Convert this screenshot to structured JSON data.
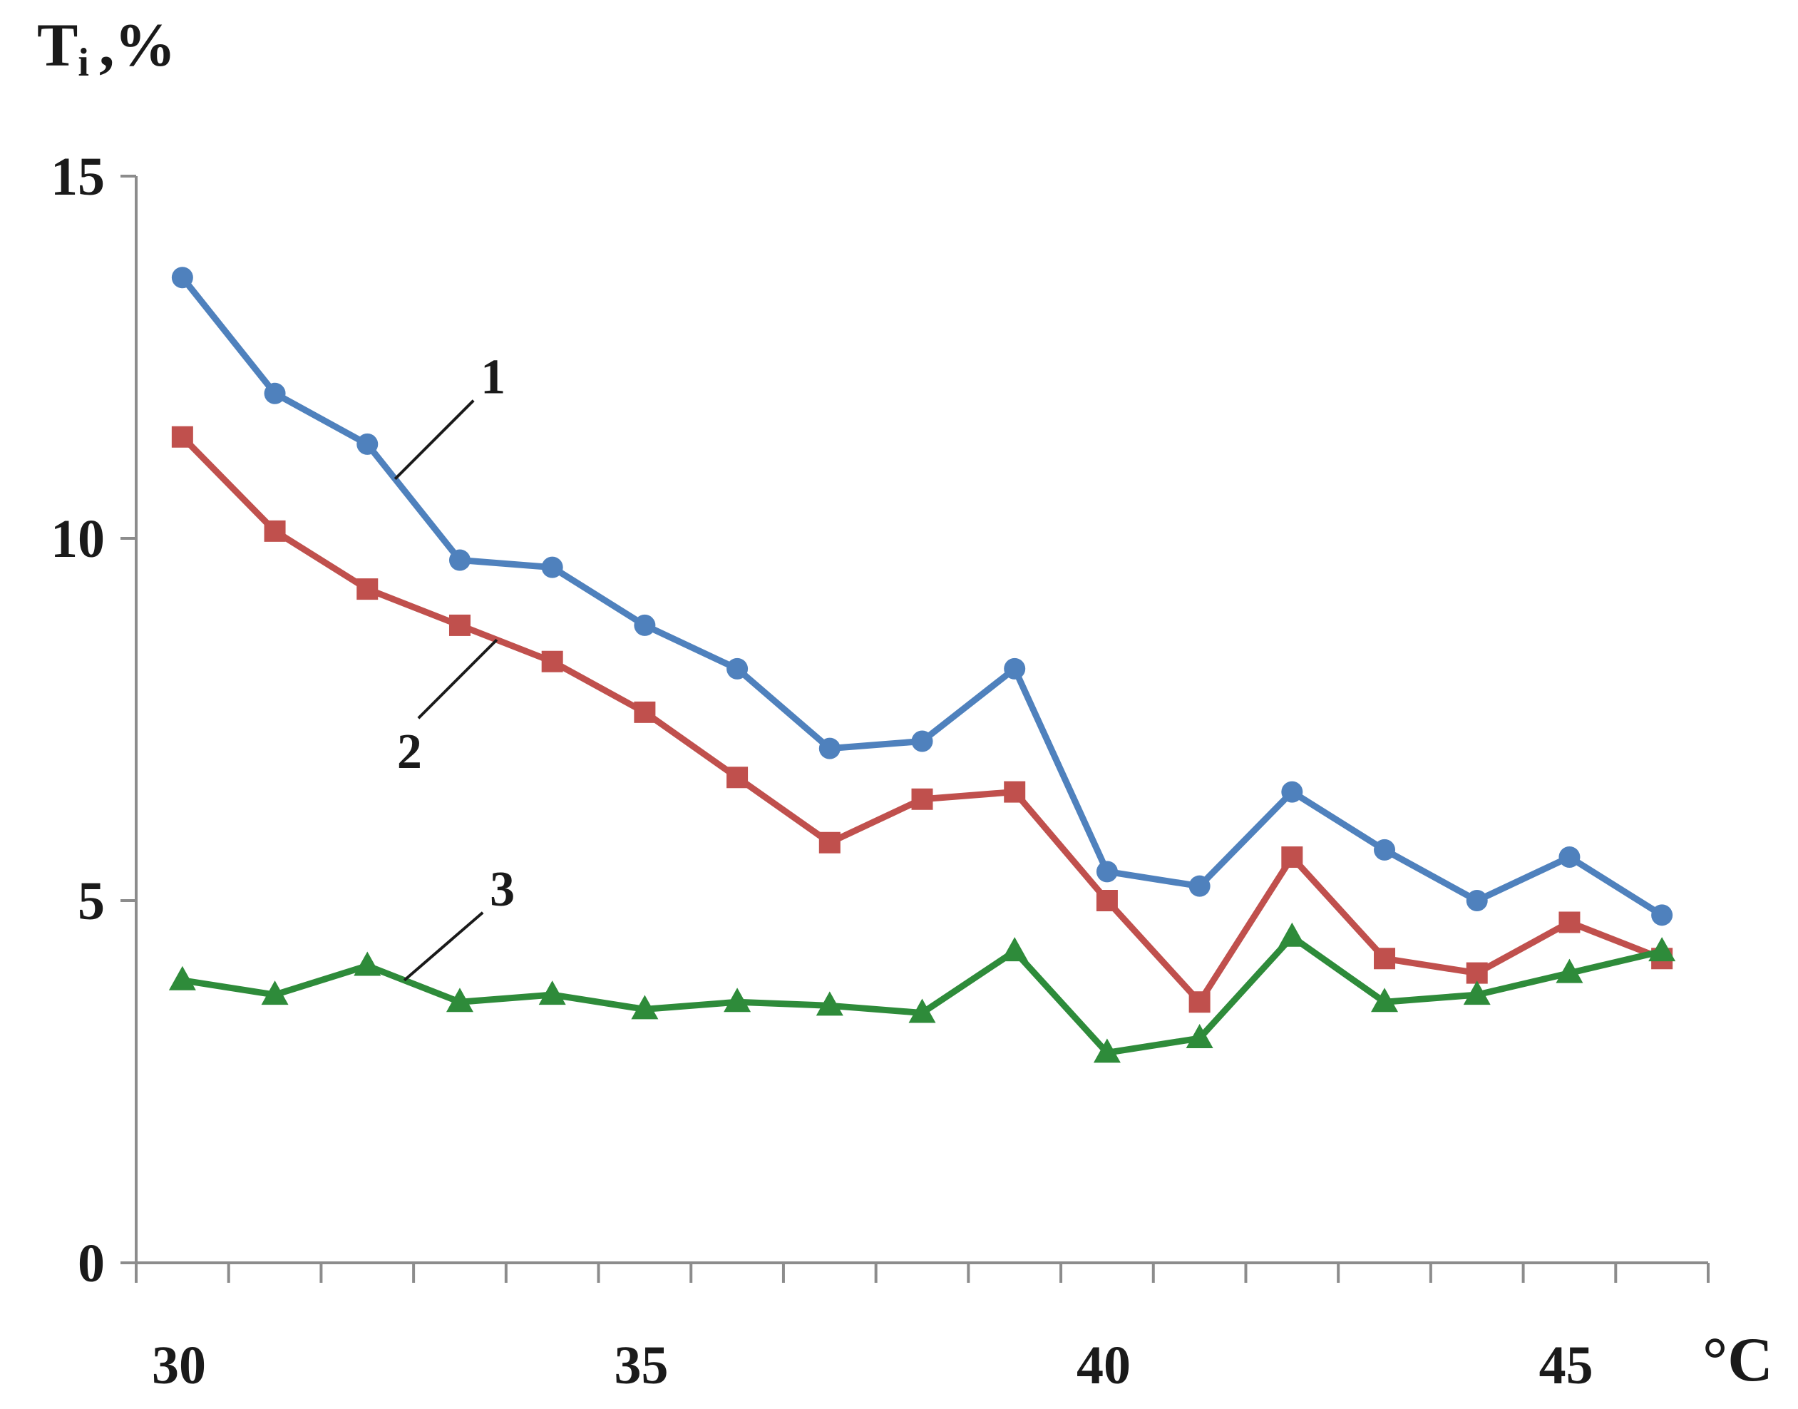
{
  "chart_data": {
    "type": "line",
    "ylabel": "T",
    "ylabel_sub": "i",
    "ylabel_unit": ",%",
    "xlabel": "°C",
    "xlim": [
      30,
      47
    ],
    "ylim": [
      0,
      15
    ],
    "x_ticks": [
      30,
      35,
      40,
      45
    ],
    "y_ticks": [
      0,
      5,
      10,
      15
    ],
    "x_minor_step": 1,
    "grid": false,
    "x": [
      30.5,
      31.5,
      32.5,
      33.5,
      34.5,
      35.5,
      36.5,
      37.5,
      38.5,
      39.5,
      40.5,
      41.5,
      42.5,
      43.5,
      44.5,
      45.5,
      46.5
    ],
    "series": [
      {
        "name": "1",
        "color": "#4f81bd",
        "marker": "circle",
        "values": [
          13.6,
          12.0,
          11.3,
          9.7,
          9.6,
          8.8,
          8.2,
          7.1,
          7.2,
          8.2,
          5.4,
          5.2,
          6.5,
          5.7,
          5.0,
          5.6,
          4.8
        ]
      },
      {
        "name": "2",
        "color": "#c0504d",
        "marker": "square",
        "values": [
          11.4,
          10.1,
          9.3,
          8.8,
          8.3,
          7.6,
          6.7,
          5.8,
          6.4,
          6.5,
          5.0,
          3.6,
          5.6,
          4.2,
          4.0,
          4.7,
          4.2
        ]
      },
      {
        "name": "3",
        "color": "#2e8b3a",
        "marker": "triangle",
        "values": [
          3.9,
          3.7,
          4.1,
          3.6,
          3.7,
          3.5,
          3.6,
          3.55,
          3.45,
          4.3,
          2.9,
          3.1,
          4.5,
          3.6,
          3.7,
          4.0,
          4.3
        ]
      }
    ],
    "annotations": [
      {
        "text": "1",
        "series": 0,
        "at_x": 32.8
      },
      {
        "text": "2",
        "series": 1,
        "at_x": 33.9
      },
      {
        "text": "3",
        "series": 2,
        "at_x": 32.9
      }
    ]
  }
}
